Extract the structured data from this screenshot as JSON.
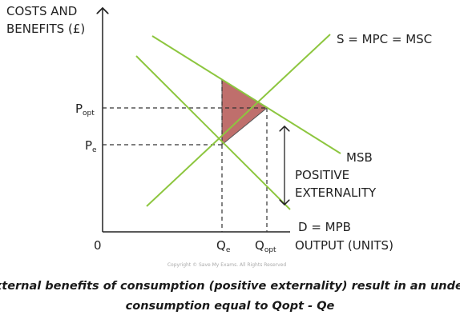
{
  "diagram": {
    "y_axis_label": [
      "COSTS AND",
      "BENEFITS (£)"
    ],
    "x_axis_label": "OUTPUT (UNITS)",
    "origin": "0",
    "supply_label": "S = MPC = MSC",
    "msb_label": "MSB",
    "demand_label": "D = MPB",
    "annotation": [
      "POSITIVE",
      "EXTERNALITY"
    ],
    "p_opt": {
      "main": "P",
      "sub": "opt"
    },
    "p_e": {
      "main": "P",
      "sub": "e"
    },
    "q_e": {
      "main": "Q",
      "sub": "e"
    },
    "q_opt": {
      "main": "Q",
      "sub": "opt"
    },
    "copyright": "Copyright © Save My Exams. All Rights Reserved"
  },
  "caption": [
    "External benefits of consumption (positive externality) result in an under-",
    "consumption equal to Qopt - Qe"
  ]
}
